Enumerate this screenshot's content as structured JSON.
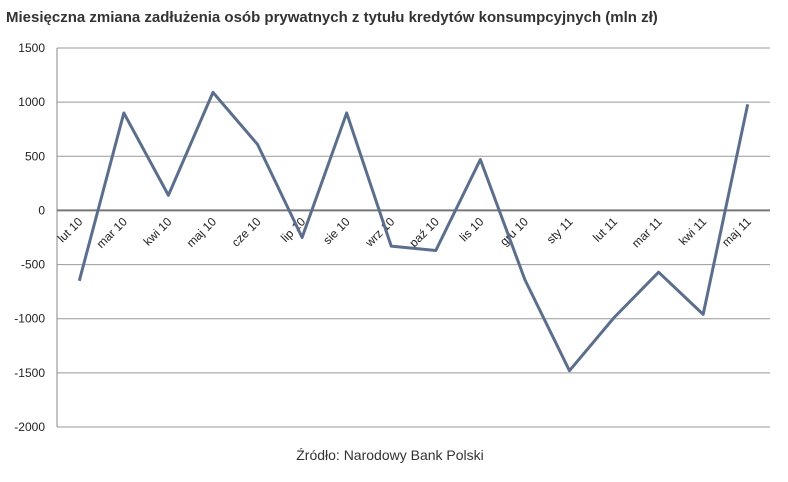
{
  "chart_data": {
    "type": "line",
    "title": "Miesięczna zmiana zadłużenia osób prywatnych z tytułu kredytów konsumpcyjnych (mln zł)",
    "source": "Źródło: Narodowy Bank Polski",
    "categories": [
      "lut 10",
      "mar 10",
      "kwi 10",
      "maj 10",
      "cze 10",
      "lip 10",
      "sie 10",
      "wrz 10",
      "paź 10",
      "lis 10",
      "gru 10",
      "sty 11",
      "lut 11",
      "mar 11",
      "kwi 11",
      "maj 11"
    ],
    "values": [
      -650,
      900,
      140,
      1090,
      610,
      -250,
      900,
      -330,
      -370,
      470,
      -640,
      -1480,
      -990,
      -570,
      -960,
      980
    ],
    "color": "#5b6f8d",
    "ylim": [
      -2000,
      1500
    ],
    "yticks": [
      -2000,
      -1500,
      -1000,
      -500,
      0,
      500,
      1000,
      1500
    ],
    "grid": true
  }
}
